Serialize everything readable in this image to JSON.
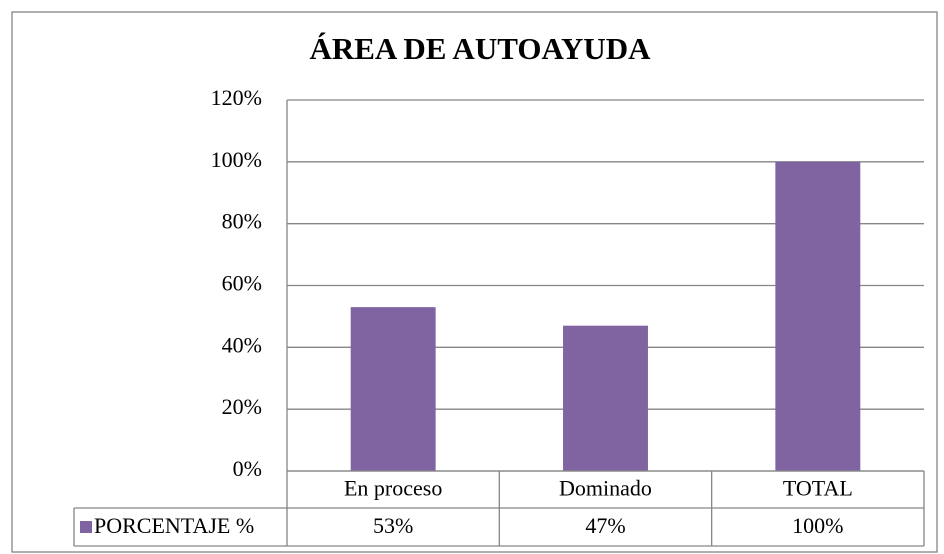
{
  "chart_data": {
    "type": "bar",
    "title": "ÁREA DE AUTOAYUDA",
    "categories": [
      "En proceso",
      "Dominado",
      "TOTAL"
    ],
    "series": [
      {
        "name": "PORCENTAJE %",
        "color": "#8064a2",
        "values": [
          53,
          47,
          100
        ],
        "value_labels": [
          "53%",
          "47%",
          "100%"
        ]
      }
    ],
    "ylim": [
      0,
      120
    ],
    "yticks": [
      {
        "value": 0,
        "label": "0%"
      },
      {
        "value": 20,
        "label": "20%"
      },
      {
        "value": 40,
        "label": "40%"
      },
      {
        "value": 60,
        "label": "60%"
      },
      {
        "value": 80,
        "label": "80%"
      },
      {
        "value": 100,
        "label": "100%"
      },
      {
        "value": 120,
        "label": "120%"
      }
    ],
    "grid": true,
    "data_table": true
  }
}
